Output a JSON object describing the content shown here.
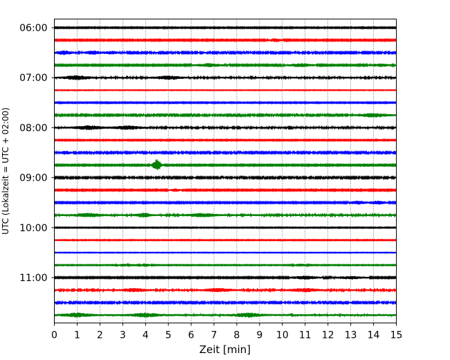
{
  "chart_data": {
    "type": "line",
    "title": "",
    "xlabel": "Zeit  [min]",
    "ylabel": "UTC (Lokalzeit = UTC + 02:00)",
    "xlim": [
      0,
      15
    ],
    "x_ticks": [
      "0",
      "1",
      "2",
      "3",
      "4",
      "5",
      "6",
      "7",
      "8",
      "9",
      "10",
      "11",
      "12",
      "13",
      "14",
      "15"
    ],
    "y_tick_labels": [
      "06:00",
      "07:00",
      "08:00",
      "09:00",
      "10:00",
      "11:00"
    ],
    "row_minutes": 15,
    "start_time": "06:00",
    "grid": "vertical dotted",
    "colors": [
      "#000000",
      "#ff0000",
      "#0000ff",
      "#008000"
    ],
    "traces": [
      {
        "start": "06:00",
        "color": "#000000",
        "amplitude": 0.25,
        "events": []
      },
      {
        "start": "06:15",
        "color": "#ff0000",
        "amplitude": 0.3,
        "events": [
          {
            "t": 9.7,
            "amp": 0.6,
            "width": 0.4
          }
        ]
      },
      {
        "start": "06:30",
        "color": "#0000ff",
        "amplitude": 0.35,
        "events": [
          {
            "t": 0.4,
            "amp": 0.7,
            "width": 0.5
          },
          {
            "t": 1.7,
            "amp": 0.6,
            "width": 0.5
          },
          {
            "t": 2.5,
            "amp": 0.5,
            "width": 0.4
          }
        ]
      },
      {
        "start": "06:45",
        "color": "#008000",
        "amplitude": 0.3,
        "events": [
          {
            "t": 6.8,
            "amp": 0.6,
            "width": 0.8
          },
          {
            "t": 10.8,
            "amp": 0.6,
            "width": 0.8
          },
          {
            "t": 14.3,
            "amp": 0.5,
            "width": 0.6
          }
        ]
      },
      {
        "start": "07:00",
        "color": "#000000",
        "amplitude": 0.4,
        "events": [
          {
            "t": 1.0,
            "amp": 0.7,
            "width": 0.8
          },
          {
            "t": 5.0,
            "amp": 0.6,
            "width": 0.8
          }
        ]
      },
      {
        "start": "07:15",
        "color": "#ff0000",
        "amplitude": 0.15,
        "events": []
      },
      {
        "start": "07:30",
        "color": "#0000ff",
        "amplitude": 0.25,
        "events": []
      },
      {
        "start": "07:45",
        "color": "#008000",
        "amplitude": 0.35,
        "events": [
          {
            "t": 14.0,
            "amp": 0.7,
            "width": 0.9
          }
        ]
      },
      {
        "start": "08:00",
        "color": "#000000",
        "amplitude": 0.4,
        "events": [
          {
            "t": 1.5,
            "amp": 0.7,
            "width": 0.8
          },
          {
            "t": 3.2,
            "amp": 0.6,
            "width": 0.8
          }
        ]
      },
      {
        "start": "08:15",
        "color": "#ff0000",
        "amplitude": 0.25,
        "events": []
      },
      {
        "start": "08:30",
        "color": "#0000ff",
        "amplitude": 0.35,
        "events": [
          {
            "t": 0.5,
            "amp": 0.6,
            "width": 0.3
          }
        ]
      },
      {
        "start": "08:45",
        "color": "#008000",
        "amplitude": 0.3,
        "events": [
          {
            "t": 4.5,
            "amp": 2.4,
            "width": 0.25
          }
        ]
      },
      {
        "start": "09:00",
        "color": "#000000",
        "amplitude": 0.35,
        "events": []
      },
      {
        "start": "09:15",
        "color": "#ff0000",
        "amplitude": 0.3,
        "events": [
          {
            "t": 5.3,
            "amp": 0.5,
            "width": 0.3
          }
        ]
      },
      {
        "start": "09:30",
        "color": "#0000ff",
        "amplitude": 0.3,
        "events": [
          {
            "t": 13.3,
            "amp": 0.6,
            "width": 0.5
          },
          {
            "t": 14.2,
            "amp": 0.6,
            "width": 0.5
          }
        ]
      },
      {
        "start": "09:45",
        "color": "#008000",
        "amplitude": 0.4,
        "events": [
          {
            "t": 1.5,
            "amp": 0.7,
            "width": 0.8
          },
          {
            "t": 3.9,
            "amp": 0.8,
            "width": 0.4
          },
          {
            "t": 6.5,
            "amp": 0.6,
            "width": 0.8
          }
        ]
      },
      {
        "start": "10:00",
        "color": "#000000",
        "amplitude": 0.2,
        "events": []
      },
      {
        "start": "10:15",
        "color": "#ff0000",
        "amplitude": 0.2,
        "events": []
      },
      {
        "start": "10:30",
        "color": "#0000ff",
        "amplitude": 0.15,
        "events": []
      },
      {
        "start": "10:45",
        "color": "#008000",
        "amplitude": 0.2,
        "events": [
          {
            "t": 3.0,
            "amp": 0.5,
            "width": 0.3
          },
          {
            "t": 4.0,
            "amp": 0.6,
            "width": 0.3
          },
          {
            "t": 10.8,
            "amp": 0.5,
            "width": 0.4
          }
        ]
      },
      {
        "start": "11:00",
        "color": "#000000",
        "amplitude": 0.3,
        "events": [
          {
            "t": 11.0,
            "amp": 0.6,
            "width": 0.8
          },
          {
            "t": 13.0,
            "amp": 0.5,
            "width": 0.8
          }
        ]
      },
      {
        "start": "11:15",
        "color": "#ff0000",
        "amplitude": 0.4,
        "events": [
          {
            "t": 3.5,
            "amp": 0.6,
            "width": 0.7
          },
          {
            "t": 7.2,
            "amp": 0.6,
            "width": 0.8
          },
          {
            "t": 11.0,
            "amp": 0.6,
            "width": 0.8
          }
        ]
      },
      {
        "start": "11:30",
        "color": "#0000ff",
        "amplitude": 0.35,
        "events": []
      },
      {
        "start": "11:45",
        "color": "#008000",
        "amplitude": 0.45,
        "events": [
          {
            "t": 1.0,
            "amp": 0.7,
            "width": 0.8
          },
          {
            "t": 4.0,
            "amp": 0.7,
            "width": 0.8
          },
          {
            "t": 8.5,
            "amp": 0.7,
            "width": 0.8
          }
        ]
      }
    ]
  }
}
